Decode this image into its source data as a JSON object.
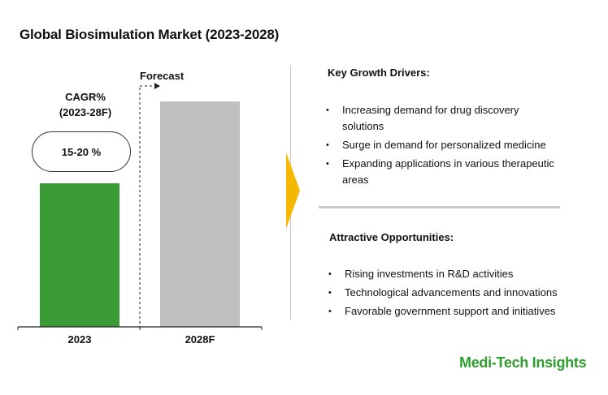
{
  "title": "Global Biosimulation Market (2023-2028)",
  "cagr": {
    "label_line1": "CAGR%",
    "label_line2": "(2023-28F)",
    "value": "15-20 %"
  },
  "forecast_label": "Forecast",
  "chart_data": {
    "type": "bar",
    "categories": [
      "2023",
      "2028F"
    ],
    "values": [
      1.0,
      1.57
    ],
    "value_note": "relative bar heights (2023 = 1.0); no numeric axis shown",
    "colors": [
      "#3a9a35",
      "#bfbfbf"
    ]
  },
  "drivers": {
    "heading": "Key Growth Drivers:",
    "items": [
      "Increasing demand for drug discovery solutions",
      "Surge in demand for personalized medicine",
      "Expanding applications in various therapeutic areas"
    ]
  },
  "opportunities": {
    "heading": "Attractive Opportunities:",
    "items": [
      "Rising investments in R&D activities",
      "Technological advancements and innovations",
      "Favorable government support and initiatives"
    ]
  },
  "brand": "Medi-Tech Insights"
}
